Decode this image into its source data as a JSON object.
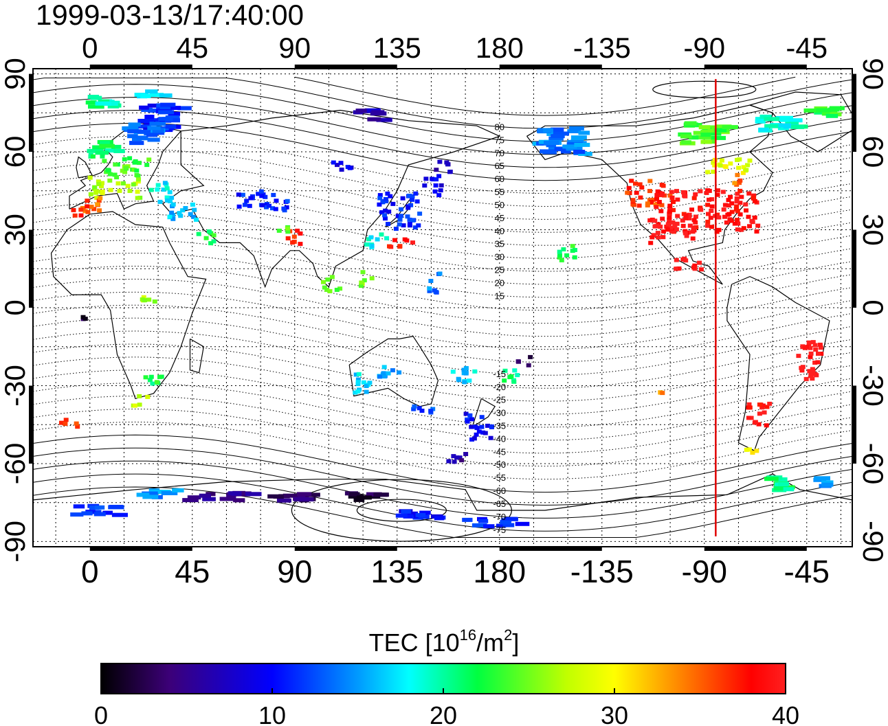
{
  "header": {
    "timestamp": "1999-03-13/17:40:00"
  },
  "map": {
    "lon_range": [
      -25,
      335
    ],
    "lat_range": [
      -92,
      92
    ],
    "top_lon_ticks": [
      "0",
      "45",
      "90",
      "135",
      "180",
      "-135",
      "-90",
      "-45"
    ],
    "bottom_lon_ticks": [
      "0",
      "45",
      "90",
      "135",
      "180",
      "-135",
      "-90",
      "-45"
    ],
    "tick_lon_values": [
      0,
      45,
      90,
      135,
      180,
      225,
      270,
      315
    ],
    "lat_ticks": [
      "90",
      "60",
      "30",
      "0",
      "-30",
      "-60",
      "-90"
    ],
    "tick_lat_values": [
      90,
      60,
      30,
      0,
      -30,
      -60,
      -90
    ],
    "grid": true,
    "terminator_meridian_lon": 275,
    "terminator_color": "#e00000",
    "magnetic_lat_labels_north": [
      "80",
      "75",
      "70",
      "65",
      "60",
      "55",
      "50",
      "45",
      "40",
      "35",
      "30",
      "25",
      "20",
      "15"
    ],
    "magnetic_lat_labels_south": [
      "-15",
      "-20",
      "-25",
      "-30",
      "-35",
      "-40",
      "-45",
      "-50",
      "-55",
      "-60",
      "-65",
      "-70",
      "-75"
    ]
  },
  "tec_clusters": [
    {
      "lon": 5,
      "lat": 80,
      "w": 18,
      "h": 4,
      "tec": 20
    },
    {
      "lon": 25,
      "lat": 83,
      "w": 12,
      "h": 3,
      "tec": 17
    },
    {
      "lon": 30,
      "lat": 74,
      "w": 20,
      "h": 10,
      "tec": 11
    },
    {
      "lon": 20,
      "lat": 68,
      "w": 16,
      "h": 8,
      "tec": 14
    },
    {
      "lon": 5,
      "lat": 62,
      "w": 14,
      "h": 6,
      "tec": 21
    },
    {
      "lon": 15,
      "lat": 55,
      "w": 20,
      "h": 8,
      "tec": 24
    },
    {
      "lon": 10,
      "lat": 47,
      "w": 22,
      "h": 8,
      "tec": 27
    },
    {
      "lon": 0,
      "lat": 40,
      "w": 12,
      "h": 6,
      "tec": 35
    },
    {
      "lon": -5,
      "lat": 38,
      "w": 8,
      "h": 4,
      "tec": 38
    },
    {
      "lon": 30,
      "lat": 45,
      "w": 10,
      "h": 8,
      "tec": 18
    },
    {
      "lon": 40,
      "lat": 38,
      "w": 12,
      "h": 8,
      "tec": 16
    },
    {
      "lon": 50,
      "lat": 28,
      "w": 8,
      "h": 5,
      "tec": 22
    },
    {
      "lon": 75,
      "lat": 42,
      "w": 22,
      "h": 8,
      "tec": 11
    },
    {
      "lon": 90,
      "lat": 28,
      "w": 8,
      "h": 6,
      "tec": 37
    },
    {
      "lon": 85,
      "lat": 30,
      "w": 6,
      "h": 4,
      "tec": 25
    },
    {
      "lon": 110,
      "lat": 55,
      "w": 10,
      "h": 4,
      "tec": 9
    },
    {
      "lon": 120,
      "lat": 75,
      "w": 12,
      "h": 4,
      "tec": 7
    },
    {
      "lon": 135,
      "lat": 38,
      "w": 18,
      "h": 14,
      "tec": 11
    },
    {
      "lon": 125,
      "lat": 27,
      "w": 10,
      "h": 6,
      "tec": 18
    },
    {
      "lon": 135,
      "lat": 26,
      "w": 12,
      "h": 4,
      "tec": 38
    },
    {
      "lon": 150,
      "lat": 48,
      "w": 8,
      "h": 8,
      "tec": 9
    },
    {
      "lon": 155,
      "lat": 55,
      "w": 10,
      "h": 4,
      "tec": 7
    },
    {
      "lon": 105,
      "lat": 10,
      "w": 8,
      "h": 6,
      "tec": 24
    },
    {
      "lon": 120,
      "lat": 12,
      "w": 6,
      "h": 6,
      "tec": 26
    },
    {
      "lon": 150,
      "lat": 10,
      "w": 6,
      "h": 8,
      "tec": 14
    },
    {
      "lon": 25,
      "lat": 2,
      "w": 6,
      "h": 6,
      "tec": 27
    },
    {
      "lon": -3,
      "lat": -3,
      "w": 2,
      "h": 2,
      "tec": 2
    },
    {
      "lon": 27,
      "lat": -27,
      "w": 8,
      "h": 6,
      "tec": 22
    },
    {
      "lon": 22,
      "lat": -35,
      "w": 8,
      "h": 4,
      "tec": 27
    },
    {
      "lon": -10,
      "lat": -43,
      "w": 8,
      "h": 4,
      "tec": 37
    },
    {
      "lon": 118,
      "lat": -28,
      "w": 8,
      "h": 10,
      "tec": 17
    },
    {
      "lon": 130,
      "lat": -25,
      "w": 10,
      "h": 6,
      "tec": 15
    },
    {
      "lon": 145,
      "lat": -38,
      "w": 10,
      "h": 4,
      "tec": 12
    },
    {
      "lon": 163,
      "lat": -25,
      "w": 12,
      "h": 6,
      "tec": 17
    },
    {
      "lon": 170,
      "lat": -45,
      "w": 12,
      "h": 10,
      "tec": 10
    },
    {
      "lon": 160,
      "lat": -57,
      "w": 10,
      "h": 4,
      "tec": 6
    },
    {
      "lon": 183,
      "lat": -25,
      "w": 8,
      "h": 6,
      "tec": 21
    },
    {
      "lon": 190,
      "lat": -20,
      "w": 6,
      "h": 4,
      "tec": 3
    },
    {
      "lon": 205,
      "lat": 65,
      "w": 22,
      "h": 10,
      "tec": 14
    },
    {
      "lon": 210,
      "lat": 22,
      "w": 10,
      "h": 6,
      "tec": 22
    },
    {
      "lon": 245,
      "lat": 45,
      "w": 20,
      "h": 10,
      "tec": 36
    },
    {
      "lon": 270,
      "lat": 38,
      "w": 45,
      "h": 16,
      "tec": 39
    },
    {
      "lon": 255,
      "lat": 30,
      "w": 20,
      "h": 10,
      "tec": 40
    },
    {
      "lon": 280,
      "lat": 55,
      "w": 20,
      "h": 6,
      "tec": 29
    },
    {
      "lon": 268,
      "lat": 68,
      "w": 20,
      "h": 8,
      "tec": 24
    },
    {
      "lon": 300,
      "lat": 72,
      "w": 18,
      "h": 6,
      "tec": 19
    },
    {
      "lon": 320,
      "lat": 76,
      "w": 14,
      "h": 4,
      "tec": 23
    },
    {
      "lon": 262,
      "lat": 18,
      "w": 12,
      "h": 6,
      "tec": 40
    },
    {
      "lon": 285,
      "lat": 50,
      "w": 8,
      "h": 4,
      "tec": 35
    },
    {
      "lon": 316,
      "lat": -20,
      "w": 12,
      "h": 16,
      "tec": 40
    },
    {
      "lon": 293,
      "lat": -40,
      "w": 10,
      "h": 10,
      "tec": 39
    },
    {
      "lon": 290,
      "lat": -55,
      "w": 6,
      "h": 4,
      "tec": 30
    },
    {
      "lon": 300,
      "lat": -67,
      "w": 12,
      "h": 6,
      "tec": 21
    },
    {
      "lon": 318,
      "lat": -66,
      "w": 8,
      "h": 4,
      "tec": 16
    },
    {
      "lon": 250,
      "lat": -32,
      "w": 4,
      "h": 3,
      "tec": 33
    },
    {
      "lon": 0,
      "lat": -77,
      "w": 20,
      "h": 4,
      "tec": 12
    },
    {
      "lon": 30,
      "lat": -71,
      "w": 20,
      "h": 3,
      "tec": 15
    },
    {
      "lon": 55,
      "lat": -72,
      "w": 30,
      "h": 3,
      "tec": 5
    },
    {
      "lon": 85,
      "lat": -72,
      "w": 25,
      "h": 3,
      "tec": 4
    },
    {
      "lon": 120,
      "lat": -72,
      "w": 20,
      "h": 3,
      "tec": 2
    },
    {
      "lon": 145,
      "lat": -79,
      "w": 25,
      "h": 3,
      "tec": 10
    },
    {
      "lon": 175,
      "lat": -82,
      "w": 25,
      "h": 3,
      "tec": 11
    }
  ],
  "colorbar": {
    "title_main": "TEC  [10",
    "title_exp": "16",
    "title_unit": "/m",
    "title_unit_exp": "2",
    "title_close": "]",
    "min": 0,
    "max": 40,
    "tick_values": [
      0,
      10,
      20,
      30,
      40
    ],
    "tick_labels": [
      "0",
      "10",
      "20",
      "30",
      "40"
    ],
    "stops": [
      "#000000",
      "#3c0078",
      "#0000ff",
      "#00a0ff",
      "#00ffff",
      "#00ff40",
      "#c0ff00",
      "#ffff00",
      "#ff8000",
      "#ff0000",
      "#ff2020"
    ]
  }
}
